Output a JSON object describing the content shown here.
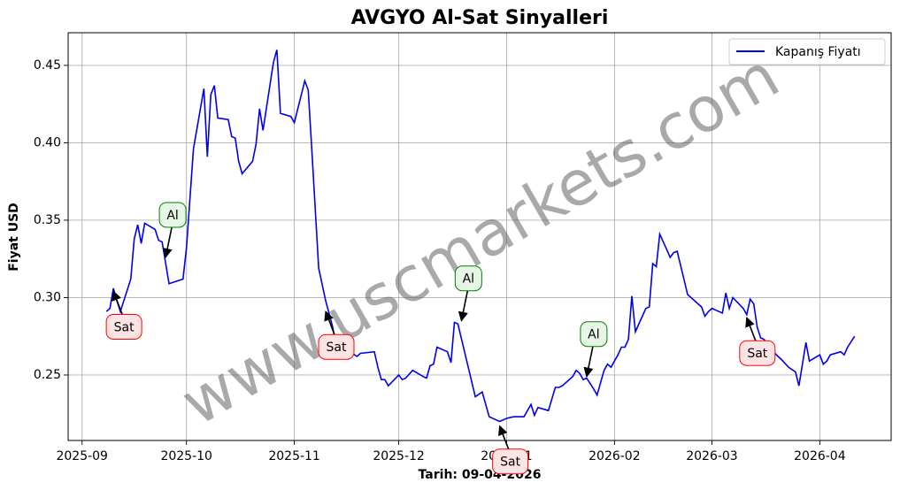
{
  "chart_data": {
    "type": "line",
    "title": "AVGYO Al-Sat Sinyalleri",
    "xlabel": "Tarih: 09-04-2026",
    "ylabel": "Fiyat USD",
    "watermark": "www.uscmarkets.com",
    "grid": true,
    "legend": "upper right",
    "xlim": [
      -4,
      232.5
    ],
    "ylim": [
      0.2077,
      0.4711
    ],
    "xticks": [
      {
        "value": 0,
        "label": "2025-09"
      },
      {
        "value": 30,
        "label": "2025-10"
      },
      {
        "value": 61,
        "label": "2025-11"
      },
      {
        "value": 91,
        "label": "2025-12"
      },
      {
        "value": 122,
        "label": "2026-01"
      },
      {
        "value": 153,
        "label": "2026-02"
      },
      {
        "value": 181,
        "label": "2026-03"
      },
      {
        "value": 212,
        "label": "2026-04"
      }
    ],
    "yticks": [
      {
        "value": 0.25,
        "label": "0.25"
      },
      {
        "value": 0.3,
        "label": "0.30"
      },
      {
        "value": 0.35,
        "label": "0.35"
      },
      {
        "value": 0.4,
        "label": "0.40"
      },
      {
        "value": 0.45,
        "label": "0.45"
      }
    ],
    "series": [
      {
        "name": "Kapanış Fiyatı",
        "color": "#0000ee",
        "x": [
          7,
          8,
          9,
          10,
          11,
          14,
          15,
          16,
          17,
          18,
          21,
          22,
          23,
          25,
          29,
          30,
          32,
          35,
          36,
          37,
          38,
          39,
          42,
          43,
          44,
          45,
          46,
          49,
          50,
          51,
          52,
          55,
          56,
          57,
          60,
          61,
          64,
          65,
          66,
          68,
          70,
          72,
          73,
          74,
          76,
          77,
          79,
          80,
          84,
          85,
          86,
          87,
          88,
          91,
          92,
          93,
          95,
          98,
          99,
          100,
          101,
          102,
          105,
          106,
          107,
          108,
          113,
          115,
          117,
          120,
          122,
          124,
          127,
          129,
          130,
          131,
          134,
          136,
          137,
          138,
          141,
          142,
          143,
          144,
          145,
          147,
          148,
          150,
          151,
          152,
          154,
          155,
          156,
          157,
          158,
          159,
          162,
          163,
          164,
          165,
          166,
          168,
          169,
          170,
          171,
          174,
          177,
          178,
          179,
          180,
          181,
          184,
          185,
          186,
          187,
          190,
          191,
          192,
          193,
          194,
          195,
          196,
          197,
          200,
          201,
          203,
          205,
          206,
          208,
          209,
          212,
          213,
          214,
          215,
          218,
          219,
          220,
          222
        ],
        "values": [
          0.291,
          0.293,
          0.306,
          0.298,
          0.291,
          0.312,
          0.338,
          0.347,
          0.335,
          0.348,
          0.344,
          0.337,
          0.336,
          0.309,
          0.312,
          0.332,
          0.396,
          0.435,
          0.391,
          0.431,
          0.437,
          0.416,
          0.415,
          0.404,
          0.403,
          0.388,
          0.38,
          0.388,
          0.399,
          0.422,
          0.408,
          0.452,
          0.46,
          0.419,
          0.417,
          0.413,
          0.44,
          0.434,
          0.396,
          0.319,
          0.298,
          0.281,
          0.269,
          0.264,
          0.263,
          0.265,
          0.262,
          0.264,
          0.265,
          0.255,
          0.247,
          0.247,
          0.243,
          0.25,
          0.247,
          0.248,
          0.253,
          0.249,
          0.248,
          0.256,
          0.257,
          0.268,
          0.265,
          0.258,
          0.284,
          0.283,
          0.236,
          0.239,
          0.223,
          0.22,
          0.222,
          0.223,
          0.223,
          0.231,
          0.224,
          0.229,
          0.227,
          0.242,
          0.242,
          0.243,
          0.249,
          0.253,
          0.251,
          0.247,
          0.248,
          0.241,
          0.237,
          0.253,
          0.257,
          0.255,
          0.263,
          0.268,
          0.268,
          0.273,
          0.301,
          0.278,
          0.293,
          0.294,
          0.322,
          0.32,
          0.341,
          0.331,
          0.326,
          0.329,
          0.33,
          0.302,
          0.296,
          0.294,
          0.288,
          0.291,
          0.293,
          0.29,
          0.303,
          0.293,
          0.3,
          0.293,
          0.289,
          0.299,
          0.296,
          0.281,
          0.274,
          0.273,
          0.269,
          0.262,
          0.26,
          0.255,
          0.252,
          0.243,
          0.271,
          0.259,
          0.263,
          0.257,
          0.259,
          0.263,
          0.265,
          0.263,
          0.268,
          0.275
        ]
      }
    ],
    "annotations": [
      {
        "text": "Sat",
        "x": 9,
        "y": 0.304,
        "color": "#ff0000",
        "fill": "#fde4e4"
      },
      {
        "text": "Al",
        "x": 24,
        "y": 0.326,
        "color": "#008000",
        "fill": "#e6f5e6"
      },
      {
        "text": "Sat",
        "x": 70,
        "y": 0.291,
        "color": "#ff0000",
        "fill": "#fde4e4"
      },
      {
        "text": "Al",
        "x": 109,
        "y": 0.285,
        "color": "#008000",
        "fill": "#e6f5e6"
      },
      {
        "text": "Sat",
        "x": 120,
        "y": 0.217,
        "color": "#ff0000",
        "fill": "#fde4e4"
      },
      {
        "text": "Al",
        "x": 145,
        "y": 0.249,
        "color": "#008000",
        "fill": "#e6f5e6"
      },
      {
        "text": "Sat",
        "x": 191,
        "y": 0.287,
        "color": "#ff0000",
        "fill": "#fde4e4"
      }
    ]
  }
}
